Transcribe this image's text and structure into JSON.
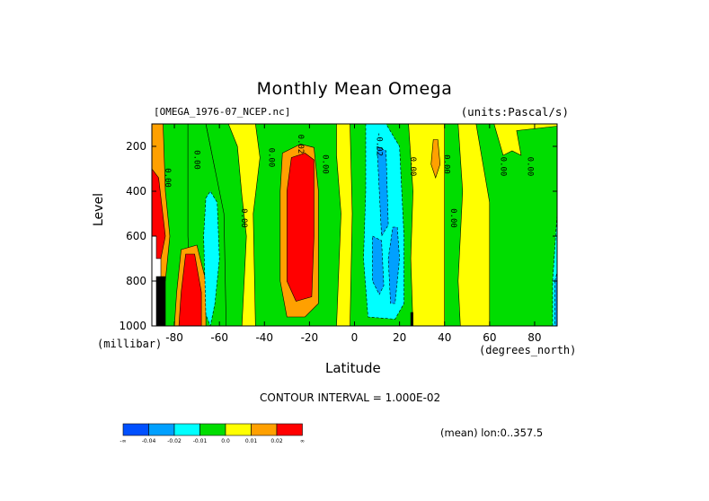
{
  "chart_data": {
    "type": "heatmap",
    "title": "Monthly Mean Omega",
    "subtitle_left": "[OMEGA_1976-07_NCEP.nc]",
    "subtitle_right": "(units:Pascal/s)",
    "xlabel": "Latitude",
    "x_unit_label": "(degrees_north)",
    "ylabel": "Level",
    "y_unit_label": "(millibar)",
    "xlim": [
      -90,
      90
    ],
    "ylim": [
      1000,
      100
    ],
    "x_ticks": [
      -80,
      -60,
      -40,
      -20,
      0,
      20,
      40,
      60,
      80
    ],
    "x_tick_labels": [
      "-80",
      "-60",
      "-40",
      "-20",
      "0",
      "20",
      "40",
      "60",
      "80"
    ],
    "y_ticks": [
      200,
      400,
      600,
      800,
      1000
    ],
    "y_tick_labels": [
      "200",
      "400",
      "600",
      "800",
      "1000"
    ],
    "background_color": "#ffff00",
    "regions": [
      {
        "color": "#00dd00",
        "polygon": [
          [
            -90,
            100
          ],
          [
            -72,
            100
          ],
          [
            -72,
            1000
          ],
          [
            -90,
            1000
          ]
        ]
      },
      {
        "color": "#00dd00",
        "polygon": [
          [
            -74,
            100
          ],
          [
            -66,
            100
          ],
          [
            -62,
            300
          ],
          [
            -56,
            440
          ],
          [
            -56,
            1000
          ],
          [
            -72,
            1000
          ],
          [
            -74,
            600
          ]
        ]
      },
      {
        "color": "#00dd00",
        "polygon": [
          [
            -66,
            100
          ],
          [
            -56,
            100
          ],
          [
            -52,
            200
          ],
          [
            -50,
            420
          ],
          [
            -48,
            600
          ],
          [
            -50,
            1000
          ],
          [
            -57,
            1000
          ],
          [
            -58,
            500
          ]
        ]
      },
      {
        "color": "#00dd00",
        "polygon": [
          [
            -44,
            100
          ],
          [
            -8,
            100
          ],
          [
            -8,
            240
          ],
          [
            -6,
            500
          ],
          [
            -8,
            1000
          ],
          [
            -44,
            1000
          ],
          [
            -45,
            500
          ],
          [
            -42,
            250
          ]
        ]
      },
      {
        "color": "#00dd00",
        "polygon": [
          [
            -2,
            100
          ],
          [
            24,
            100
          ],
          [
            26,
            400
          ],
          [
            25,
            700
          ],
          [
            26,
            1000
          ],
          [
            -2,
            1000
          ],
          [
            -1,
            500
          ]
        ]
      },
      {
        "color": "#00dd00",
        "polygon": [
          [
            40,
            100
          ],
          [
            46,
            100
          ],
          [
            48,
            400
          ],
          [
            46,
            800
          ],
          [
            47,
            1000
          ],
          [
            40,
            1000
          ]
        ]
      },
      {
        "color": "#00dd00",
        "polygon": [
          [
            54,
            100
          ],
          [
            62,
            100
          ],
          [
            66,
            240
          ],
          [
            70,
            220
          ],
          [
            74,
            240
          ],
          [
            72,
            130
          ],
          [
            90,
            110
          ],
          [
            90,
            1000
          ],
          [
            60,
            1000
          ],
          [
            60,
            450
          ]
        ]
      },
      {
        "color": "#ffa000",
        "polygon": [
          [
            -32,
            230
          ],
          [
            -24,
            190
          ],
          [
            -18,
            205
          ],
          [
            -16,
            400
          ],
          [
            -16,
            900
          ],
          [
            -22,
            960
          ],
          [
            -30,
            960
          ],
          [
            -33,
            800
          ],
          [
            -33,
            400
          ]
        ]
      },
      {
        "color": "#ff0000",
        "polygon": [
          [
            -28,
            250
          ],
          [
            -22,
            230
          ],
          [
            -18,
            260
          ],
          [
            -18,
            600
          ],
          [
            -19,
            870
          ],
          [
            -26,
            890
          ],
          [
            -30,
            800
          ],
          [
            -30,
            400
          ]
        ]
      },
      {
        "color": "#ffa000",
        "polygon": [
          [
            35,
            170
          ],
          [
            37,
            170
          ],
          [
            38,
            280
          ],
          [
            36,
            340
          ],
          [
            34,
            280
          ]
        ]
      },
      {
        "color": "#ffa000",
        "polygon": [
          [
            -90,
            100
          ],
          [
            -85,
            100
          ],
          [
            -84,
            400
          ],
          [
            -82,
            600
          ],
          [
            -84,
            800
          ],
          [
            -90,
            800
          ]
        ]
      },
      {
        "color": "#ff0000",
        "polygon": [
          [
            -90,
            300
          ],
          [
            -87,
            340
          ],
          [
            -84,
            600
          ],
          [
            -86,
            700
          ],
          [
            -90,
            700
          ]
        ]
      },
      {
        "color": "#ffa000",
        "polygon": [
          [
            -77,
            660
          ],
          [
            -70,
            640
          ],
          [
            -66,
            800
          ],
          [
            -66,
            1000
          ],
          [
            -80,
            1000
          ],
          [
            -79,
            850
          ]
        ]
      },
      {
        "color": "#ff0000",
        "polygon": [
          [
            -75,
            680
          ],
          [
            -71,
            680
          ],
          [
            -68,
            850
          ],
          [
            -68,
            1000
          ],
          [
            -78,
            1000
          ],
          [
            -77,
            850
          ]
        ]
      },
      {
        "color": "#00ffff",
        "polygon": [
          [
            -66,
            430
          ],
          [
            -64,
            400
          ],
          [
            -61,
            450
          ],
          [
            -60,
            700
          ],
          [
            -62,
            900
          ],
          [
            -64,
            1000
          ],
          [
            -66,
            950
          ],
          [
            -67,
            600
          ]
        ]
      },
      {
        "color": "#00ffff",
        "polygon": [
          [
            5,
            100
          ],
          [
            14,
            100
          ],
          [
            20,
            200
          ],
          [
            22,
            600
          ],
          [
            22,
            900
          ],
          [
            18,
            970
          ],
          [
            6,
            960
          ],
          [
            4,
            700
          ],
          [
            5,
            400
          ]
        ]
      },
      {
        "color": "#00a0ff",
        "polygon": [
          [
            10,
            200
          ],
          [
            14,
            220
          ],
          [
            15,
            550
          ],
          [
            12,
            600
          ],
          [
            11,
            400
          ]
        ]
      },
      {
        "color": "#00a0ff",
        "polygon": [
          [
            17,
            560
          ],
          [
            19,
            560
          ],
          [
            20,
            700
          ],
          [
            18,
            900
          ],
          [
            16,
            900
          ],
          [
            15,
            700
          ]
        ]
      },
      {
        "color": "#00a0ff",
        "polygon": [
          [
            8,
            600
          ],
          [
            12,
            620
          ],
          [
            13,
            820
          ],
          [
            11,
            860
          ],
          [
            8,
            800
          ]
        ]
      },
      {
        "color": "#00ffff",
        "polygon": [
          [
            88,
            800
          ],
          [
            90,
            500
          ],
          [
            90,
            1000
          ],
          [
            88,
            1000
          ]
        ]
      },
      {
        "color": "#00a0ff",
        "polygon": [
          [
            89,
            800
          ],
          [
            90,
            760
          ],
          [
            90,
            1000
          ],
          [
            89,
            1000
          ]
        ]
      },
      {
        "color": "#ffffff",
        "polygon": [
          [
            -90,
            600
          ],
          [
            -88,
            600
          ],
          [
            -88,
            700
          ],
          [
            -86,
            700
          ],
          [
            -86,
            1000
          ],
          [
            -90,
            1000
          ]
        ]
      },
      {
        "color": "#000000",
        "polygon": [
          [
            -88,
            780
          ],
          [
            -84,
            780
          ],
          [
            -84,
            1000
          ],
          [
            -88,
            1000
          ]
        ]
      },
      {
        "color": "#000000",
        "polygon": [
          [
            25,
            940
          ],
          [
            26,
            940
          ],
          [
            26,
            1000
          ],
          [
            25,
            1000
          ]
        ]
      }
    ],
    "contour_labels": [
      {
        "text": "0.00",
        "x": -84,
        "y": 340
      },
      {
        "text": "0.00",
        "x": -71,
        "y": 260
      },
      {
        "text": "0.00",
        "x": -50,
        "y": 520
      },
      {
        "text": "0.00",
        "x": -38,
        "y": 250
      },
      {
        "text": "0.00",
        "x": -14,
        "y": 280
      },
      {
        "text": "0.02",
        "x": -25,
        "y": 190
      },
      {
        "text": "-0.02",
        "x": 10,
        "y": 190
      },
      {
        "text": "0.00",
        "x": 25,
        "y": 290
      },
      {
        "text": "0.00",
        "x": 40,
        "y": 280
      },
      {
        "text": "0.00",
        "x": 43,
        "y": 520
      },
      {
        "text": "0.00",
        "x": 65,
        "y": 290
      },
      {
        "text": "0.00",
        "x": 77,
        "y": 290
      }
    ],
    "contour_interval_text": "CONTOUR INTERVAL = 1.000E-02",
    "colorbar": {
      "colors": [
        "#0050ff",
        "#00a0ff",
        "#00ffff",
        "#00dd00",
        "#ffff00",
        "#ffa000",
        "#ff0000"
      ],
      "labels": [
        "-∞",
        "-0.04",
        "-0.02",
        "-0.01",
        "0.0",
        "0.01",
        "0.02",
        "∞"
      ]
    },
    "annotation": "(mean) lon:0..357.5"
  }
}
